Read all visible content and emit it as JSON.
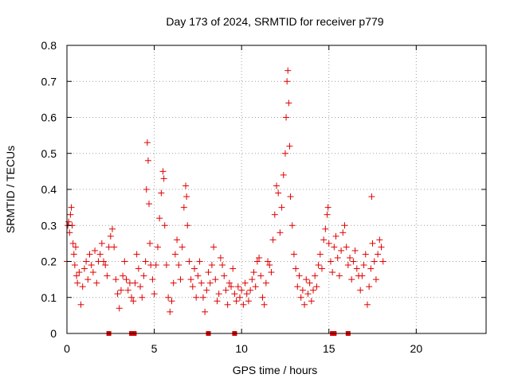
{
  "chart_data": {
    "type": "scatter",
    "title": "Day 173 of 2024, SRMTID for receiver p779",
    "xlabel": "GPS time / hours",
    "ylabel": "SRMTID / TECUs",
    "xlim": [
      0,
      24
    ],
    "ylim": [
      0,
      0.8
    ],
    "x_ticks": [
      0,
      5,
      10,
      15,
      20
    ],
    "x_tick_labels": [
      "0",
      "5",
      "10",
      "15",
      "20"
    ],
    "y_ticks": [
      0,
      0.1,
      0.2,
      0.3,
      0.4,
      0.5,
      0.6,
      0.7,
      0.8
    ],
    "y_tick_labels": [
      "0",
      "0.1",
      "0.2",
      "0.3",
      "0.4",
      "0.5",
      "0.6",
      "0.7",
      "0.8"
    ],
    "grid": true,
    "marker": "+",
    "color": "#e00000",
    "series": [
      {
        "name": "SRMTID",
        "points": [
          [
            0.0,
            0.2
          ],
          [
            0.05,
            0.3
          ],
          [
            0.1,
            0.31
          ],
          [
            0.15,
            0.28
          ],
          [
            0.2,
            0.33
          ],
          [
            0.25,
            0.35
          ],
          [
            0.3,
            0.3
          ],
          [
            0.35,
            0.25
          ],
          [
            0.4,
            0.22
          ],
          [
            0.45,
            0.19
          ],
          [
            0.5,
            0.24
          ],
          [
            0.55,
            0.16
          ],
          [
            0.6,
            0.14
          ],
          [
            0.7,
            0.17
          ],
          [
            0.8,
            0.08
          ],
          [
            0.9,
            0.13
          ],
          [
            1.0,
            0.18
          ],
          [
            1.1,
            0.2
          ],
          [
            1.2,
            0.15
          ],
          [
            1.3,
            0.22
          ],
          [
            1.4,
            0.19
          ],
          [
            1.5,
            0.17
          ],
          [
            1.6,
            0.23
          ],
          [
            1.7,
            0.14
          ],
          [
            1.8,
            0.2
          ],
          [
            1.9,
            0.22
          ],
          [
            2.0,
            0.25
          ],
          [
            2.1,
            0.2
          ],
          [
            2.2,
            0.19
          ],
          [
            2.3,
            0.16
          ],
          [
            2.4,
            0.24
          ],
          [
            2.5,
            0.27
          ],
          [
            2.6,
            0.29
          ],
          [
            2.7,
            0.24
          ],
          [
            2.8,
            0.15
          ],
          [
            2.9,
            0.11
          ],
          [
            3.0,
            0.07
          ],
          [
            3.1,
            0.12
          ],
          [
            3.2,
            0.16
          ],
          [
            3.3,
            0.2
          ],
          [
            3.4,
            0.15
          ],
          [
            3.5,
            0.12
          ],
          [
            3.6,
            0.14
          ],
          [
            3.7,
            0.1
          ],
          [
            3.8,
            0.09
          ],
          [
            3.9,
            0.14
          ],
          [
            4.0,
            0.22
          ],
          [
            4.1,
            0.18
          ],
          [
            4.2,
            0.13
          ],
          [
            4.3,
            0.1
          ],
          [
            4.4,
            0.16
          ],
          [
            4.5,
            0.2
          ],
          [
            4.55,
            0.4
          ],
          [
            4.6,
            0.53
          ],
          [
            4.65,
            0.48
          ],
          [
            4.7,
            0.36
          ],
          [
            4.75,
            0.25
          ],
          [
            4.8,
            0.19
          ],
          [
            4.9,
            0.15
          ],
          [
            5.0,
            0.11
          ],
          [
            5.1,
            0.19
          ],
          [
            5.2,
            0.24
          ],
          [
            5.3,
            0.32
          ],
          [
            5.4,
            0.39
          ],
          [
            5.5,
            0.45
          ],
          [
            5.55,
            0.43
          ],
          [
            5.6,
            0.3
          ],
          [
            5.7,
            0.19
          ],
          [
            5.8,
            0.1
          ],
          [
            5.9,
            0.06
          ],
          [
            6.0,
            0.09
          ],
          [
            6.1,
            0.14
          ],
          [
            6.2,
            0.22
          ],
          [
            6.3,
            0.26
          ],
          [
            6.4,
            0.19
          ],
          [
            6.5,
            0.15
          ],
          [
            6.6,
            0.24
          ],
          [
            6.7,
            0.35
          ],
          [
            6.8,
            0.41
          ],
          [
            6.85,
            0.38
          ],
          [
            6.9,
            0.3
          ],
          [
            7.0,
            0.2
          ],
          [
            7.1,
            0.15
          ],
          [
            7.2,
            0.13
          ],
          [
            7.3,
            0.18
          ],
          [
            7.4,
            0.1
          ],
          [
            7.5,
            0.16
          ],
          [
            7.6,
            0.2
          ],
          [
            7.7,
            0.14
          ],
          [
            7.8,
            0.1
          ],
          [
            7.9,
            0.06
          ],
          [
            8.0,
            0.12
          ],
          [
            8.1,
            0.17
          ],
          [
            8.2,
            0.14
          ],
          [
            8.3,
            0.19
          ],
          [
            8.4,
            0.24
          ],
          [
            8.5,
            0.15
          ],
          [
            8.6,
            0.09
          ],
          [
            8.7,
            0.11
          ],
          [
            8.8,
            0.21
          ],
          [
            8.9,
            0.19
          ],
          [
            9.0,
            0.16
          ],
          [
            9.1,
            0.12
          ],
          [
            9.2,
            0.08
          ],
          [
            9.3,
            0.14
          ],
          [
            9.4,
            0.13
          ],
          [
            9.5,
            0.18
          ],
          [
            9.6,
            0.11
          ],
          [
            9.7,
            0.09
          ],
          [
            9.8,
            0.13
          ],
          [
            9.9,
            0.1
          ],
          [
            10.0,
            0.12
          ],
          [
            10.1,
            0.08
          ],
          [
            10.2,
            0.14
          ],
          [
            10.3,
            0.11
          ],
          [
            10.4,
            0.09
          ],
          [
            10.5,
            0.12
          ],
          [
            10.6,
            0.15
          ],
          [
            10.7,
            0.17
          ],
          [
            10.8,
            0.13
          ],
          [
            10.9,
            0.2
          ],
          [
            11.0,
            0.21
          ],
          [
            11.1,
            0.16
          ],
          [
            11.2,
            0.1
          ],
          [
            11.3,
            0.08
          ],
          [
            11.4,
            0.14
          ],
          [
            11.5,
            0.2
          ],
          [
            11.6,
            0.19
          ],
          [
            11.7,
            0.17
          ],
          [
            11.8,
            0.26
          ],
          [
            11.9,
            0.33
          ],
          [
            12.0,
            0.41
          ],
          [
            12.1,
            0.39
          ],
          [
            12.2,
            0.28
          ],
          [
            12.3,
            0.35
          ],
          [
            12.4,
            0.44
          ],
          [
            12.5,
            0.5
          ],
          [
            12.55,
            0.6
          ],
          [
            12.6,
            0.7
          ],
          [
            12.65,
            0.73
          ],
          [
            12.7,
            0.64
          ],
          [
            12.75,
            0.52
          ],
          [
            12.8,
            0.38
          ],
          [
            12.9,
            0.3
          ],
          [
            13.0,
            0.22
          ],
          [
            13.1,
            0.18
          ],
          [
            13.2,
            0.13
          ],
          [
            13.3,
            0.16
          ],
          [
            13.4,
            0.1
          ],
          [
            13.5,
            0.12
          ],
          [
            13.6,
            0.08
          ],
          [
            13.7,
            0.15
          ],
          [
            13.8,
            0.11
          ],
          [
            13.9,
            0.14
          ],
          [
            14.0,
            0.09
          ],
          [
            14.1,
            0.12
          ],
          [
            14.2,
            0.16
          ],
          [
            14.3,
            0.13
          ],
          [
            14.4,
            0.19
          ],
          [
            14.5,
            0.22
          ],
          [
            14.6,
            0.18
          ],
          [
            14.7,
            0.26
          ],
          [
            14.8,
            0.29
          ],
          [
            14.9,
            0.33
          ],
          [
            14.95,
            0.35
          ],
          [
            15.0,
            0.25
          ],
          [
            15.1,
            0.2
          ],
          [
            15.2,
            0.17
          ],
          [
            15.3,
            0.24
          ],
          [
            15.4,
            0.27
          ],
          [
            15.5,
            0.21
          ],
          [
            15.6,
            0.16
          ],
          [
            15.7,
            0.23
          ],
          [
            15.8,
            0.28
          ],
          [
            15.9,
            0.3
          ],
          [
            16.0,
            0.24
          ],
          [
            16.1,
            0.19
          ],
          [
            16.2,
            0.21
          ],
          [
            16.3,
            0.15
          ],
          [
            16.4,
            0.2
          ],
          [
            16.5,
            0.23
          ],
          [
            16.6,
            0.18
          ],
          [
            16.7,
            0.16
          ],
          [
            16.8,
            0.12
          ],
          [
            16.9,
            0.16
          ],
          [
            17.0,
            0.19
          ],
          [
            17.1,
            0.22
          ],
          [
            17.2,
            0.08
          ],
          [
            17.3,
            0.13
          ],
          [
            17.4,
            0.18
          ],
          [
            17.45,
            0.38
          ],
          [
            17.5,
            0.25
          ],
          [
            17.6,
            0.2
          ],
          [
            17.7,
            0.15
          ],
          [
            17.8,
            0.22
          ],
          [
            17.9,
            0.26
          ],
          [
            18.0,
            0.24
          ],
          [
            18.1,
            0.2
          ]
        ]
      }
    ],
    "baseline_markers_x": [
      2.4,
      3.7,
      3.85,
      8.1,
      9.6,
      15.2,
      15.3,
      16.1
    ]
  }
}
